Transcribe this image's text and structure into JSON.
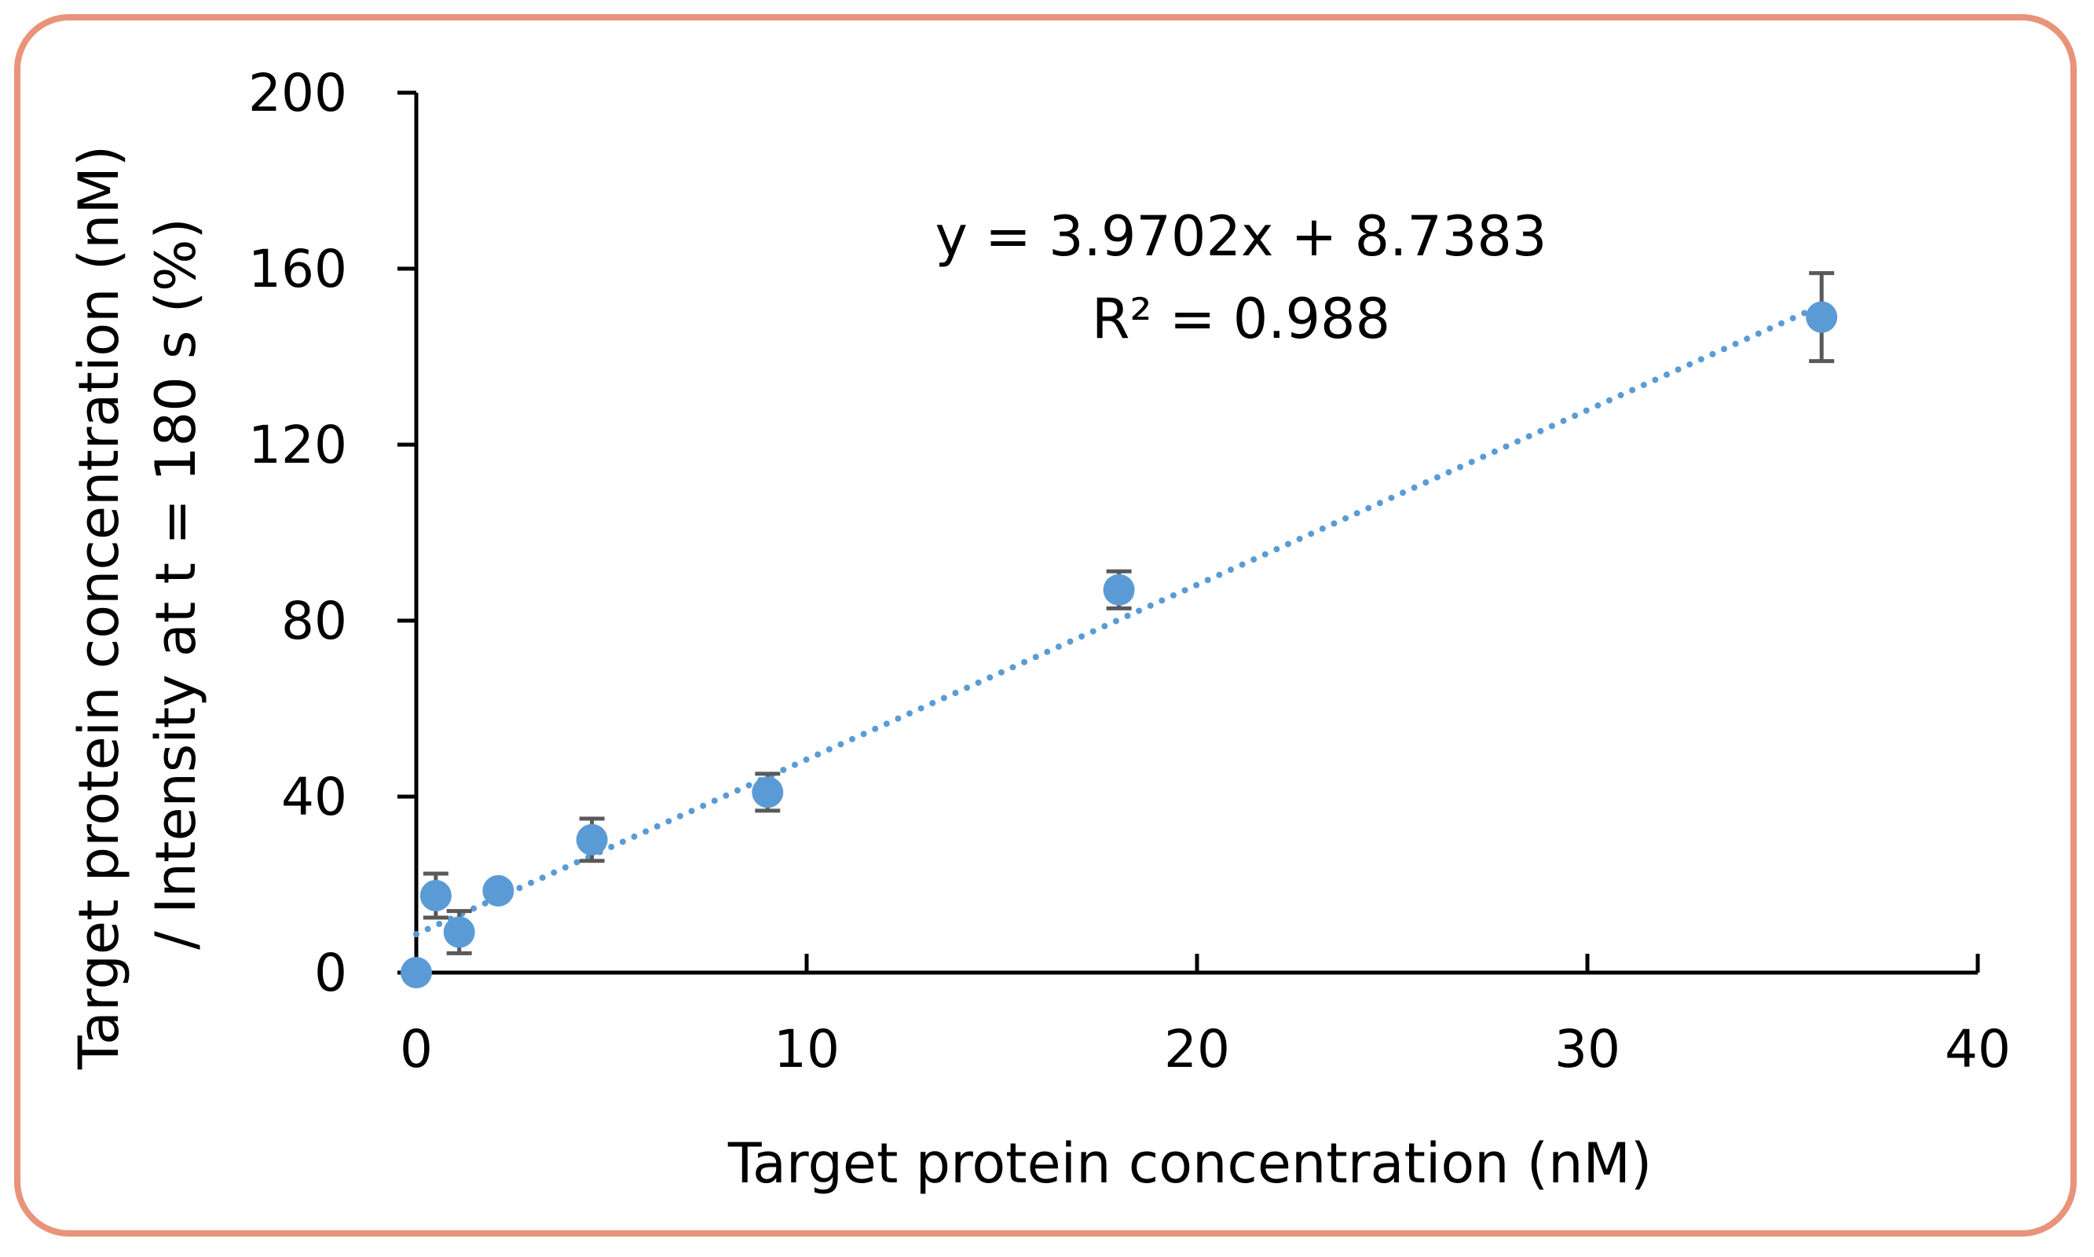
{
  "chart_data": {
    "type": "scatter",
    "title": "",
    "xlabel": "Target protein concentration (nM)",
    "ylabel_lines": [
      "Target protein concentration (nM)",
      "/ Intensity at t = 180 s (%)"
    ],
    "xlim": [
      0,
      40
    ],
    "ylim": [
      0,
      200
    ],
    "x_ticks": [
      0,
      10,
      20,
      30,
      40
    ],
    "y_ticks": [
      0,
      40,
      80,
      120,
      160,
      200
    ],
    "grid": false,
    "legend": "none",
    "points": [
      {
        "x": 0,
        "y": 0,
        "err": 0
      },
      {
        "x": 0.5,
        "y": 17.5,
        "err": 5
      },
      {
        "x": 1.1,
        "y": 9.2,
        "err": 4.8
      },
      {
        "x": 2.1,
        "y": 18.6,
        "err": 0
      },
      {
        "x": 4.5,
        "y": 30.2,
        "err": 4.8
      },
      {
        "x": 9.0,
        "y": 41.0,
        "err": 4.2
      },
      {
        "x": 18.0,
        "y": 87.0,
        "err": 4.2
      },
      {
        "x": 36.0,
        "y": 149.0,
        "err": 10
      }
    ],
    "trendline": {
      "type": "linear",
      "slope": 3.9702,
      "intercept": 8.7383,
      "x_range": [
        0,
        36
      ],
      "style": "dotted"
    },
    "annotations": {
      "equation": "y = 3.9702x + 8.7383",
      "r_squared": "R² = 0.988"
    },
    "colors": {
      "marker": "#5b9bd5",
      "trendline": "#5b9bd5",
      "error_bar": "#595959",
      "axis": "#000000",
      "frame": "#e8937a"
    }
  }
}
